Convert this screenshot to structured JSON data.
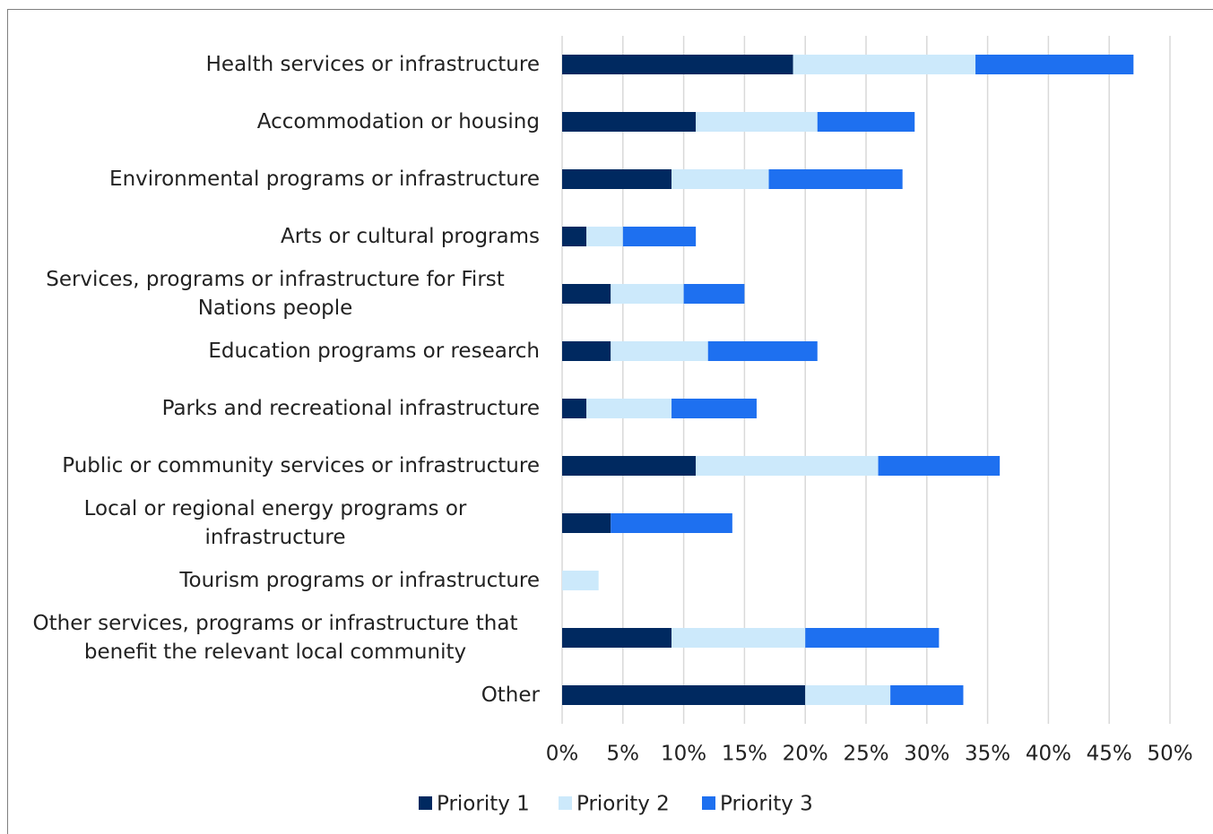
{
  "chart_data": {
    "type": "stacked_bar_horizontal",
    "categories": [
      "Health services or infrastructure",
      "Accommodation or housing",
      "Environmental programs or infrastructure",
      "Arts or cultural programs",
      "Services, programs or infrastructure for First Nations people",
      "Education programs or research",
      "Parks and recreational infrastructure",
      "Public or community services or infrastructure",
      "Local or regional energy programs or infrastructure",
      "Tourism programs or infrastructure",
      "Other services, programs or infrastructure that benefit the relevant local community",
      "Other"
    ],
    "series": [
      {
        "name": "Priority 1",
        "color": "#002960",
        "values": [
          19,
          11,
          9,
          2,
          4,
          4,
          2,
          11,
          4,
          0,
          9,
          20
        ]
      },
      {
        "name": "Priority 2",
        "color": "#cce9fb",
        "values": [
          15,
          10,
          8,
          3,
          6,
          8,
          7,
          15,
          0,
          3,
          11,
          7
        ]
      },
      {
        "name": "Priority 3",
        "color": "#1e70f0",
        "values": [
          13,
          8,
          11,
          6,
          5,
          9,
          7,
          10,
          10,
          0,
          11,
          6
        ]
      }
    ],
    "xlim": [
      0,
      50
    ],
    "xticks": [
      {
        "value": 0,
        "label": "0%"
      },
      {
        "value": 5,
        "label": "5%"
      },
      {
        "value": 10,
        "label": "10%"
      },
      {
        "value": 15,
        "label": "15%"
      },
      {
        "value": 20,
        "label": "20%"
      },
      {
        "value": 25,
        "label": "25%"
      },
      {
        "value": 30,
        "label": "30%"
      },
      {
        "value": 35,
        "label": "35%"
      },
      {
        "value": 40,
        "label": "40%"
      },
      {
        "value": 45,
        "label": "45%"
      },
      {
        "value": 50,
        "label": "50%"
      }
    ],
    "grid": true,
    "legend": "bottom"
  }
}
